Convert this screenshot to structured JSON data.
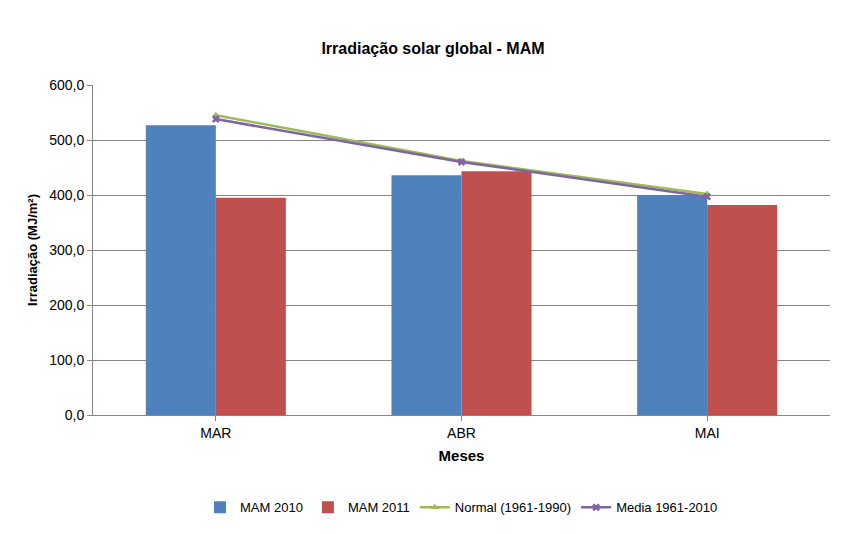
{
  "chart_data": {
    "type": "bar",
    "title": "Irradiação solar global - MAM",
    "x_label": "Meses",
    "y_label": "Irradiação (MJ/m²)",
    "categories": [
      "MAR",
      "ABR",
      "MAI"
    ],
    "series": [
      {
        "name": "MAM 2010",
        "type": "bar",
        "color": "#4f81bd",
        "values": [
          527,
          436,
          400
        ]
      },
      {
        "name": "MAM 2011",
        "type": "bar",
        "color": "#c0504d",
        "values": [
          395,
          443,
          382
        ]
      },
      {
        "name": "Normal (1961-1990)",
        "type": "line",
        "color": "#9bbb59",
        "marker": "triangle-up",
        "line_style": "solid",
        "values": [
          545,
          462,
          402
        ]
      },
      {
        "name": "Media 1961-2010",
        "type": "line",
        "color": "#8064a2",
        "marker": "x",
        "line_style": "solid",
        "values": [
          538,
          460,
          397
        ]
      }
    ],
    "ylim": [
      0,
      600
    ],
    "yticks": [
      {
        "value": 0,
        "label": "0,0"
      },
      {
        "value": 100,
        "label": "100,0"
      },
      {
        "value": 200,
        "label": "200,0"
      },
      {
        "value": 300,
        "label": "300,0"
      },
      {
        "value": 400,
        "label": "400,0"
      },
      {
        "value": 500,
        "label": "500,0"
      },
      {
        "value": 600,
        "label": "600,0"
      }
    ],
    "grid": true,
    "legend": "bottom"
  }
}
